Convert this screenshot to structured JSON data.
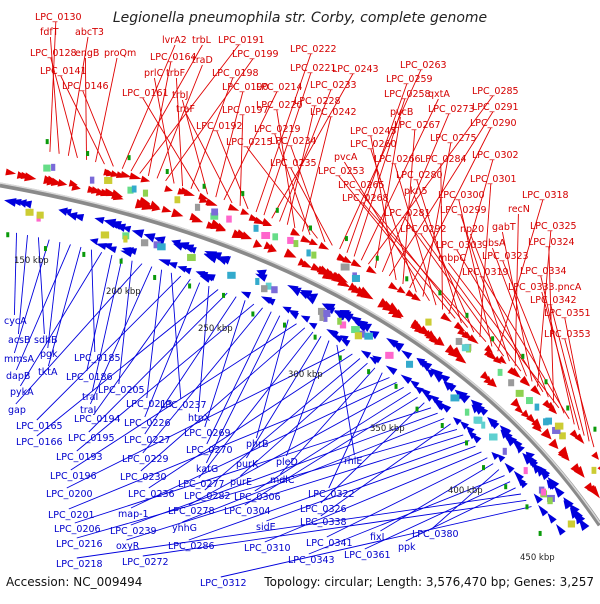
{
  "header": {
    "title": "Legionella pneumophila str. Corby, complete genome"
  },
  "footer": {
    "accession": "Accession: NC_009494",
    "topology": "Topology: circular; Length: 3,576,470 bp; Genes: 3,257"
  },
  "colors": {
    "forward": "#e00000",
    "reverse": "#0000dd",
    "backbone": "#888888",
    "marker": "#0a9a0a"
  },
  "kbp_ticks": [
    "150 kbp",
    "200 kbp",
    "250 kbp",
    "300 kbp",
    "350 kbp",
    "400 kbp",
    "450 kbp"
  ],
  "forward_labels": [
    "LPC_0130",
    "fdfT",
    "abcT3",
    "LPC_0128",
    "engB",
    "proQm",
    "LPC_0141",
    "LPC_0146",
    "lvrA2",
    "trbL",
    "LPC_0191",
    "LPC_0164",
    "traD",
    "LPC_0199",
    "prlC",
    "trbF",
    "LPC_0198",
    "LPC_0161",
    "trbJ",
    "LPC_0190",
    "LPC_0214",
    "traF",
    "LPC_0197",
    "LPC_0192",
    "LPC_0222",
    "LPC_0221",
    "LPC_0243",
    "LPC_0233",
    "LPC_0228",
    "LPC_0220",
    "LPC_0242",
    "LPC_0219",
    "LPC_0215",
    "LPC_0234",
    "LPC_0235",
    "LPC_0263",
    "LPC_0259",
    "LPC_0258",
    "qxtA",
    "LPC_0285",
    "pvcB",
    "LPC_0273",
    "LPC_0291",
    "LPC_0245",
    "LPC_0267",
    "LPC_0290",
    "LPC_0260",
    "LPC_0275",
    "pvcA",
    "LPC_0266",
    "LPC_0284",
    "LPC_0302",
    "LPC_0253",
    "LPC_0280",
    "LPC_0265",
    "pkn5",
    "LPC_0301",
    "LPC_0268",
    "LPC_0300",
    "LPC_0318",
    "LPC_0281",
    "LPC_0299",
    "recN",
    "LPC_0292",
    "np20",
    "gabT",
    "LPC_0325",
    "LPC_0303",
    "gbsA",
    "LPC_0324",
    "mbpC",
    "LPC_0323",
    "LPC_0319",
    "LPC_0334",
    "LPC_0333.pncA",
    "LPC_0342",
    "LPC_0351",
    "LPC_0353"
  ],
  "reverse_labels": [
    "cycA",
    "acsB",
    "sdhB",
    "mmsA",
    "pgk",
    "dapB",
    "tktA",
    "LPC_0185",
    "pykA",
    "LPC_0186",
    "traI",
    "LPC_0205",
    "gap",
    "traJ",
    "LPC_0213",
    "LPC_0237",
    "LPC_0165",
    "LPC_0194",
    "LPC_0226",
    "htpX",
    "LPC_0166",
    "LPC_0195",
    "LPC_0227",
    "LPC_0269",
    "LPC_0193",
    "LPC_0229",
    "LPC_0270",
    "katG",
    "phrB",
    "LPC_0196",
    "LPC_0230",
    "LPC_0277",
    "purK",
    "pleD",
    "rhlE",
    "LPC_0200",
    "LPC_0236",
    "LPC_0282",
    "purE",
    "mdlC",
    "LPC_0322",
    "LPC_0201",
    "map-1",
    "LPC_0278",
    "LPC_0306",
    "LPC_0304",
    "LPC_0326",
    "LPC_0206",
    "LPC_0239",
    "yhhG",
    "LPC_0338",
    "LPC_0216",
    "oxyR",
    "LPC_0286",
    "sidE",
    "LPC_0310",
    "LPC_0341",
    "fixL",
    "LPC_0380",
    "LPC_0343",
    "LPC_0361",
    "ppk",
    "LPC_0218",
    "LPC_0272",
    "LPC_0312"
  ]
}
